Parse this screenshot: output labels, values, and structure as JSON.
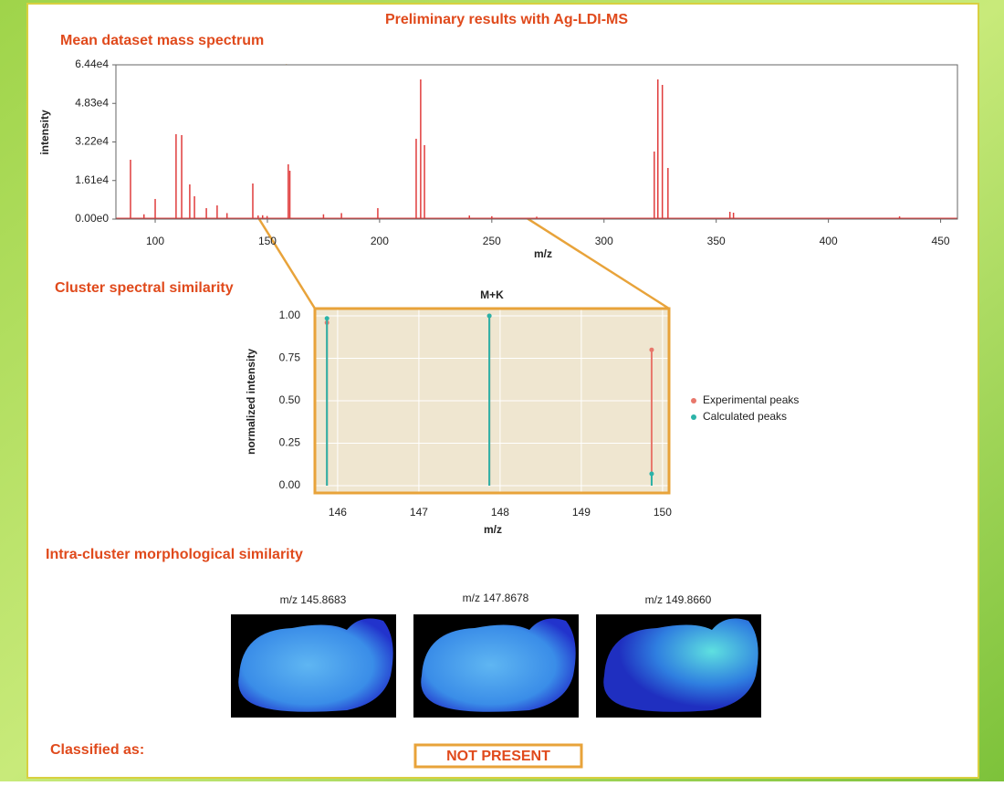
{
  "title": "Preliminary results with Ag-LDI-MS",
  "sections": {
    "spectral": "Cluster spectral similarity",
    "morphological": "Intra-cluster morphological similarity",
    "classified": "Classified as:",
    "result": "NOT PRESENT"
  },
  "images": [
    {
      "caption": "m/z 145.8683"
    },
    {
      "caption": "m/z 147.8678"
    },
    {
      "caption": "m/z 149.8660"
    }
  ],
  "chart_data": [
    {
      "type": "spectrum",
      "title": "Mean dataset mass spectrum",
      "xlabel": "m/z",
      "ylabel": "intensity",
      "x": [
        89,
        95,
        100,
        109.3,
        111.8,
        115.4,
        117.5,
        122.8,
        127.6,
        132,
        143.5,
        145.87,
        147.87,
        149.87,
        159.3,
        160,
        175,
        183,
        199.2,
        216.3,
        218.3,
        220,
        240,
        250,
        270,
        322.4,
        324,
        326,
        328.5,
        356.1,
        357.7,
        431.7
      ],
      "values": [
        24770,
        2000,
        8400,
        35440,
        35060,
        14480,
        9530,
        4570,
        5720,
        2500,
        14860,
        1500,
        1600,
        1300,
        22860,
        20200,
        2000,
        2500,
        4570,
        33530,
        58300,
        30870,
        1500,
        1200,
        1000,
        28200,
        58300,
        56000,
        21340,
        3050,
        2670,
        1140
      ],
      "color": "#e03c3c",
      "xlim": [
        82.5,
        457.5
      ],
      "xticks": [
        100,
        150,
        200,
        250,
        300,
        350,
        400,
        450
      ],
      "ylim": [
        0,
        64400
      ],
      "yticks": [
        {
          "value": 0,
          "label": "0.00e0"
        },
        {
          "value": 16100,
          "label": "1.61e4"
        },
        {
          "value": 32200,
          "label": "3.22e4"
        },
        {
          "value": 48300,
          "label": "4.83e4"
        },
        {
          "value": 64400,
          "label": "6.44e4"
        }
      ]
    },
    {
      "type": "stem",
      "title": "M+K",
      "xlabel": "m/z",
      "ylabel": "normalized intensity",
      "x": [
        145.8683,
        147.8678,
        149.866
      ],
      "series": [
        {
          "name": "Experimental peaks",
          "color": "#e8776b",
          "values": [
            0.96,
            1.0,
            0.8
          ]
        },
        {
          "name": "Calculated peaks",
          "color": "#2bb3a8",
          "values": [
            0.985,
            1.0,
            0.07
          ]
        }
      ],
      "xlim": [
        145.72,
        150.08
      ],
      "xticks": [
        146,
        147,
        148,
        149,
        150
      ],
      "ylim": [
        -0.043,
        1.043
      ],
      "yticks": [
        {
          "value": 0,
          "label": "0.00"
        },
        {
          "value": 0.25,
          "label": "0.25"
        },
        {
          "value": 0.5,
          "label": "0.50"
        },
        {
          "value": 0.75,
          "label": "0.75"
        },
        {
          "value": 1,
          "label": "1.00"
        }
      ],
      "grid": true,
      "legend": "right"
    }
  ]
}
